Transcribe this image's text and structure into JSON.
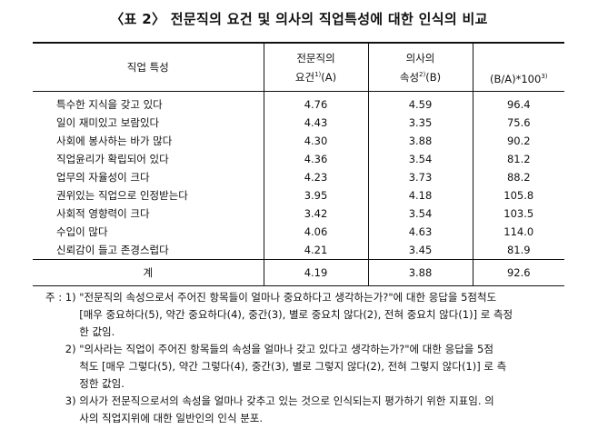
{
  "title": "〈표 2〉 전문직의 요건 및 의사의 직업특성에 대한 인식의 비교",
  "headers": {
    "col1": "직업 특성",
    "col2_line1": "전문직의",
    "col2_line2": "요건",
    "col2_sup": "1)",
    "col2_suffix": "(A)",
    "col3_line1": "의사의",
    "col3_line2": "속성",
    "col3_sup": "2)",
    "col3_suffix": "(B)",
    "col4": "(B/A)*100",
    "col4_sup": "3)"
  },
  "rows": [
    {
      "name": "특수한 지식을 갖고 있다",
      "a": "4.76",
      "b": "4.59",
      "ratio": "96.4"
    },
    {
      "name": "일이 재미있고 보람있다",
      "a": "4.43",
      "b": "3.35",
      "ratio": "75.6"
    },
    {
      "name": "사회에 봉사하는 바가 많다",
      "a": "4.30",
      "b": "3.88",
      "ratio": "90.2"
    },
    {
      "name": "직업윤리가 확립되어 있다",
      "a": "4.36",
      "b": "3.54",
      "ratio": "81.2"
    },
    {
      "name": "업무의 자율성이 크다",
      "a": "4.23",
      "b": "3.73",
      "ratio": "88.2"
    },
    {
      "name": "권위있는 직업으로 인정받는다",
      "a": "3.95",
      "b": "4.18",
      "ratio": "105.8"
    },
    {
      "name": "사회적 영향력이 크다",
      "a": "3.42",
      "b": "3.54",
      "ratio": "103.5"
    },
    {
      "name": "수입이 많다",
      "a": "4.06",
      "b": "4.63",
      "ratio": "114.0"
    },
    {
      "name": "신뢰감이 들고 존경스럽다",
      "a": "4.21",
      "b": "3.45",
      "ratio": "81.9"
    }
  ],
  "total": {
    "name": "계",
    "a": "4.19",
    "b": "3.88",
    "ratio": "92.6"
  },
  "notes": {
    "prefix": "주 : ",
    "items": [
      {
        "marker": "1) ",
        "lines": [
          "\"전문직의 속성으로서 주어진 항목들이 얼마나 중요하다고 생각하는가?\"에 대한 응답을 5점척도",
          "[매우 중요하다(5), 약간 중요하다(4), 중간(3), 별로 중요치 않다(2), 전혀 중요치 않다(1)] 로 측정",
          "한 값임."
        ]
      },
      {
        "marker": "2) ",
        "lines": [
          "\"의사라는 직업이 주어진 항목들의 속성을 얼마나 갖고 있다고 생각하는가?\"에 대한 응답을 5점",
          "척도 [매우 그렇다(5), 약간 그렇다(4), 중간(3), 별로 그렇지 않다(2), 전혀 그렇지 않다(1)] 로 측",
          "정한 값임."
        ]
      },
      {
        "marker": "3) ",
        "lines": [
          "의사가 전문직으로서의 속성을 얼마나 갖추고 있는 것으로 인식되는지 평가하기 위한 지표임. 의",
          "사의 직업지위에 대한 일반인의 인식 분포."
        ]
      }
    ]
  }
}
